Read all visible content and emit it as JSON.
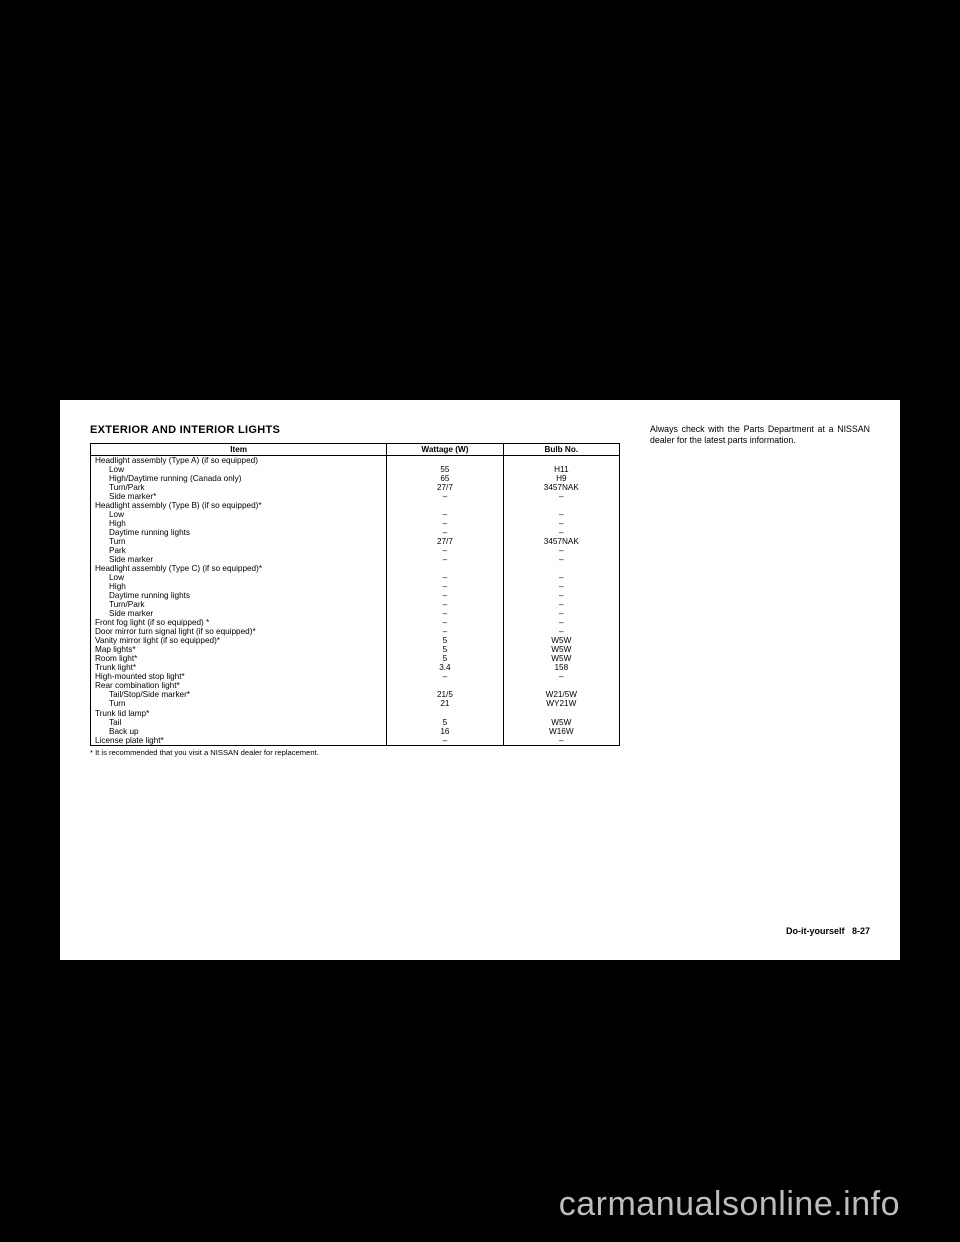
{
  "sectionTitle": "EXTERIOR AND INTERIOR LIGHTS",
  "tableHeaders": {
    "item": "Item",
    "wattage": "Wattage (W)",
    "bulb": "Bulb No."
  },
  "rows": [
    {
      "item": "Headlight assembly (Type A) (if so equipped)",
      "indent": 0,
      "wattage": "",
      "bulb": ""
    },
    {
      "item": "Low",
      "indent": 1,
      "wattage": "55",
      "bulb": "H11"
    },
    {
      "item": "High/Daytime running (Canada only)",
      "indent": 1,
      "wattage": "65",
      "bulb": "H9"
    },
    {
      "item": "Turn/Park",
      "indent": 1,
      "wattage": "27/7",
      "bulb": "3457NAK"
    },
    {
      "item": "Side marker*",
      "indent": 1,
      "wattage": "–",
      "bulb": "–"
    },
    {
      "item": "Headlight assembly (Type B) (if so equipped)*",
      "indent": 0,
      "wattage": "",
      "bulb": ""
    },
    {
      "item": "Low",
      "indent": 1,
      "wattage": "–",
      "bulb": "–"
    },
    {
      "item": "High",
      "indent": 1,
      "wattage": "–",
      "bulb": "–"
    },
    {
      "item": "Daytime running lights",
      "indent": 1,
      "wattage": "–",
      "bulb": "–"
    },
    {
      "item": "Turn",
      "indent": 1,
      "wattage": "27/7",
      "bulb": "3457NAK"
    },
    {
      "item": "Park",
      "indent": 1,
      "wattage": "–",
      "bulb": "–"
    },
    {
      "item": "Side marker",
      "indent": 1,
      "wattage": "–",
      "bulb": "–"
    },
    {
      "item": "Headlight assembly (Type C) (if so equipped)*",
      "indent": 0,
      "wattage": "",
      "bulb": ""
    },
    {
      "item": "Low",
      "indent": 1,
      "wattage": "–",
      "bulb": "–"
    },
    {
      "item": "High",
      "indent": 1,
      "wattage": "–",
      "bulb": "–"
    },
    {
      "item": "Daytime running lights",
      "indent": 1,
      "wattage": "–",
      "bulb": "–"
    },
    {
      "item": "Turn/Park",
      "indent": 1,
      "wattage": "–",
      "bulb": "–"
    },
    {
      "item": "Side marker",
      "indent": 1,
      "wattage": "–",
      "bulb": "–"
    },
    {
      "item": "Front fog light (if so equipped) *",
      "indent": 0,
      "wattage": "–",
      "bulb": "–"
    },
    {
      "item": "Door mirror turn signal light (if so equipped)*",
      "indent": 0,
      "wattage": "–",
      "bulb": "–"
    },
    {
      "item": "Vanity mirror light (if so equipped)*",
      "indent": 0,
      "wattage": "5",
      "bulb": "W5W"
    },
    {
      "item": "Map lights*",
      "indent": 0,
      "wattage": "5",
      "bulb": "W5W"
    },
    {
      "item": "Room light*",
      "indent": 0,
      "wattage": "5",
      "bulb": "W5W"
    },
    {
      "item": "Trunk light*",
      "indent": 0,
      "wattage": "3.4",
      "bulb": "158"
    },
    {
      "item": "High-mounted stop light*",
      "indent": 0,
      "wattage": "–",
      "bulb": "–"
    },
    {
      "item": "Rear combination light*",
      "indent": 0,
      "wattage": "",
      "bulb": ""
    },
    {
      "item": "Tail/Stop/Side marker*",
      "indent": 1,
      "wattage": "21/5",
      "bulb": "W21/5W"
    },
    {
      "item": "Turn",
      "indent": 1,
      "wattage": "21",
      "bulb": "WY21W"
    },
    {
      "item": "Trunk lid lamp*",
      "indent": 0,
      "wattage": "",
      "bulb": ""
    },
    {
      "item": "Tail",
      "indent": 1,
      "wattage": "5",
      "bulb": "W5W"
    },
    {
      "item": "Back up",
      "indent": 1,
      "wattage": "16",
      "bulb": "W16W"
    },
    {
      "item": "License plate light*",
      "indent": 0,
      "wattage": "–",
      "bulb": "–"
    }
  ],
  "footnote": "*  It is recommended that you visit a NISSAN dealer for replacement.",
  "rightNote": "Always check with the Parts Department at a NISSAN dealer for the latest parts information.",
  "pageFooterSection": "Do-it-yourself",
  "pageFooterNum": "8-27",
  "watermark": "carmanualsonline.info"
}
